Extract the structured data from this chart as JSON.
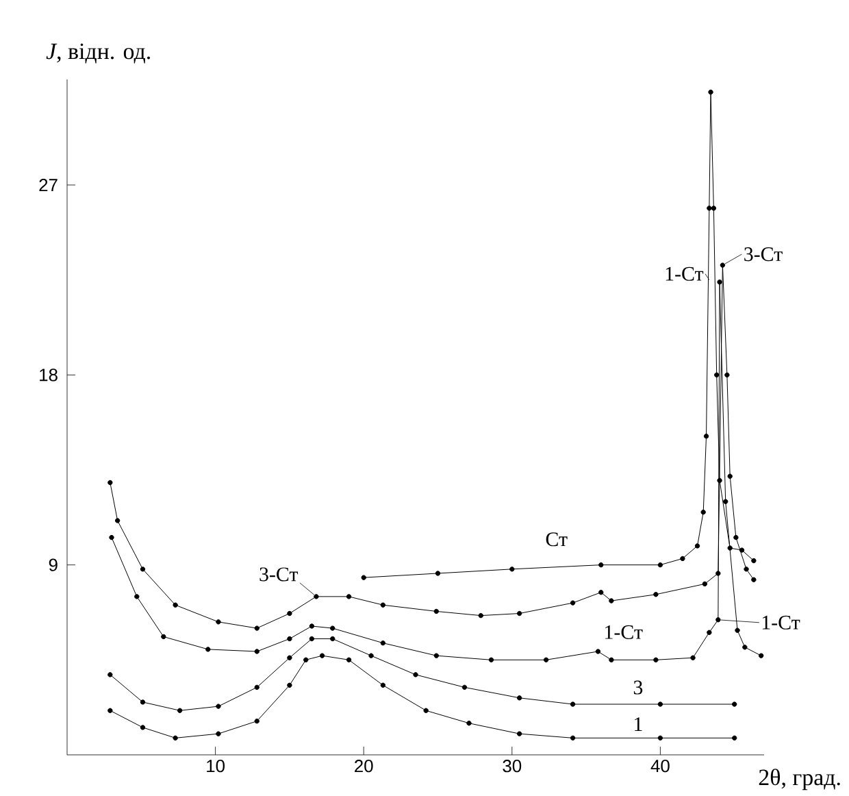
{
  "chart_data": {
    "type": "line",
    "xlabel": "2θ, град.",
    "ylabel": "*J*, відн. од.",
    "xlim": [
      0,
      47
    ],
    "ylim": [
      0,
      32
    ],
    "xticks": [
      10,
      20,
      30,
      40
    ],
    "yticks": [
      9,
      18,
      27
    ],
    "grid": false,
    "marker": "circle",
    "line_style": "solid",
    "series": [
      {
        "color": "#000000",
        "x": [
          20.0,
          25.0,
          30.0,
          36.0,
          40.0,
          41.5,
          42.5,
          42.9,
          43.1,
          43.3,
          43.4,
          43.6,
          43.8,
          44.0,
          44.7,
          45.5,
          46.3
        ],
        "values": [
          8.4,
          8.6,
          8.8,
          9.0,
          9.0,
          9.3,
          9.9,
          11.5,
          15.1,
          25.9,
          31.4,
          25.9,
          18.0,
          13.0,
          9.8,
          9.7,
          9.2
        ]
      },
      {
        "color": "#000000",
        "x": [
          2.9,
          3.4,
          5.1,
          7.3,
          10.2,
          12.8,
          15.0,
          16.8,
          19.0,
          21.3,
          24.9,
          27.9,
          30.5,
          34.1,
          36.0,
          36.7,
          39.7,
          43.0,
          43.9,
          44.2,
          44.5,
          44.7,
          45.1,
          45.8,
          46.3
        ],
        "values": [
          12.9,
          11.1,
          8.8,
          7.1,
          6.3,
          6.0,
          6.7,
          7.5,
          7.5,
          7.1,
          6.8,
          6.6,
          6.7,
          7.2,
          7.7,
          7.3,
          7.6,
          8.1,
          8.6,
          23.2,
          18.0,
          13.2,
          10.3,
          8.8,
          8.3
        ]
      },
      {
        "color": "#000000",
        "x": [
          3.0,
          4.7,
          6.5,
          9.5,
          12.8,
          15.0,
          16.5,
          17.9,
          21.3,
          24.9,
          28.6,
          32.3,
          35.8,
          36.7,
          39.7,
          42.2,
          43.3,
          43.9,
          44.0,
          44.4,
          45.2,
          45.7,
          46.8
        ],
        "values": [
          10.3,
          7.5,
          5.6,
          5.0,
          4.9,
          5.5,
          6.1,
          6.0,
          5.3,
          4.7,
          4.5,
          4.5,
          4.9,
          4.5,
          4.5,
          4.6,
          5.8,
          6.4,
          22.4,
          12.0,
          5.9,
          5.1,
          4.7
        ]
      },
      {
        "color": "#000000",
        "x": [
          2.9,
          5.1,
          7.6,
          10.2,
          12.8,
          15.0,
          16.5,
          17.9,
          20.5,
          23.5,
          26.8,
          30.5,
          34.1,
          40.0,
          45.0
        ],
        "values": [
          3.8,
          2.5,
          2.1,
          2.3,
          3.2,
          4.6,
          5.5,
          5.5,
          4.7,
          3.8,
          3.2,
          2.7,
          2.4,
          2.4,
          2.4
        ]
      },
      {
        "color": "#000000",
        "x": [
          2.9,
          5.1,
          7.3,
          10.2,
          12.8,
          15.0,
          16.1,
          17.2,
          19.0,
          21.3,
          24.2,
          27.1,
          30.5,
          34.1,
          40.0,
          45.0
        ],
        "values": [
          2.1,
          1.3,
          0.8,
          1.0,
          1.6,
          3.3,
          4.5,
          4.7,
          4.5,
          3.3,
          2.1,
          1.5,
          1.0,
          0.8,
          0.8,
          0.8
        ]
      }
    ],
    "annotations": [
      {
        "text": "Ст",
        "x": 33.0,
        "y": 8.9
      },
      {
        "text": "3-Ст",
        "x": 16.8,
        "y": 7.5
      },
      {
        "text": "1-Ст",
        "x": 37.5,
        "y": 4.5
      },
      {
        "text": "3",
        "x": 38.5,
        "y": 2.4
      },
      {
        "text": "1",
        "x": 38.5,
        "y": 0.8
      },
      {
        "text": "1-Ст",
        "x": 43.9,
        "y": 6.4
      },
      {
        "text": "1-Ст",
        "x": 43.4,
        "y": 22.4
      },
      {
        "text": "3-Ст",
        "x": 44.2,
        "y": 23.2
      }
    ]
  }
}
